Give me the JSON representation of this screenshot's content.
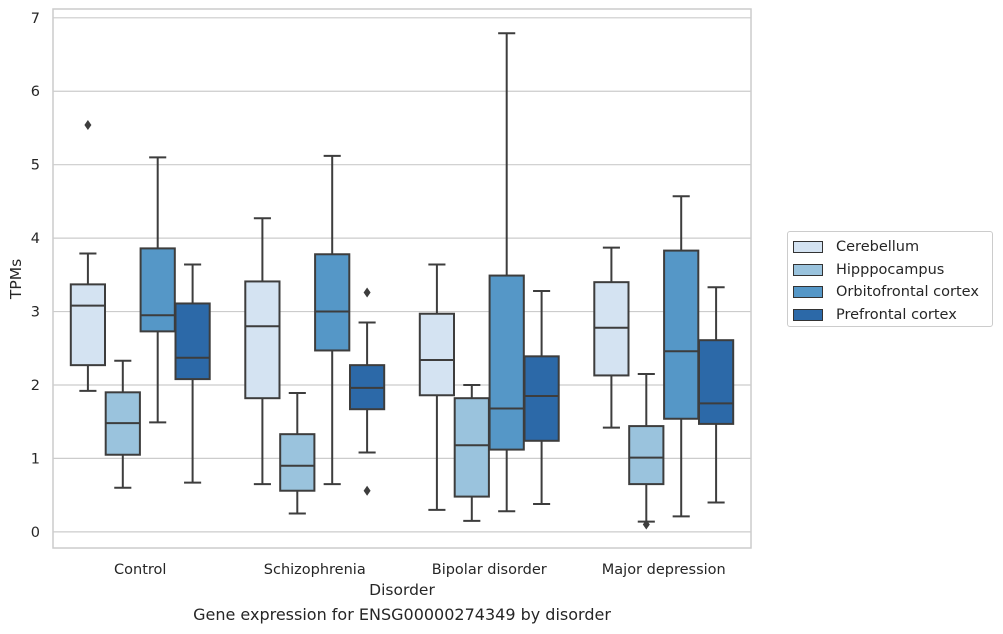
{
  "caption": "Gene expression for ENSG00000274349 by disorder",
  "chart_data": {
    "type": "box",
    "xlabel": "Disorder",
    "ylabel": "TPMs",
    "ylim": [
      -0.22,
      7.12
    ],
    "yticks": [
      0,
      1,
      2,
      3,
      4,
      5,
      6,
      7
    ],
    "grid": "horizontal",
    "legend_position": "right",
    "categories": [
      "Control",
      "Schizophrenia",
      "Bipolar disorder",
      "Major depression"
    ],
    "series": [
      {
        "name": "Cerebellum",
        "color": "#d4e3f2",
        "boxes": [
          {
            "whisker_low": 1.92,
            "q1": 2.27,
            "median": 3.08,
            "q3": 3.37,
            "whisker_high": 3.79,
            "outliers": [
              5.54
            ]
          },
          {
            "whisker_low": 0.65,
            "q1": 1.82,
            "median": 2.8,
            "q3": 3.41,
            "whisker_high": 4.27,
            "outliers": []
          },
          {
            "whisker_low": 0.3,
            "q1": 1.86,
            "median": 2.34,
            "q3": 2.97,
            "whisker_high": 3.64,
            "outliers": []
          },
          {
            "whisker_low": 1.42,
            "q1": 2.13,
            "median": 2.78,
            "q3": 3.4,
            "whisker_high": 3.87,
            "outliers": []
          }
        ]
      },
      {
        "name": "Hipppocampus",
        "color": "#9ac3dd",
        "boxes": [
          {
            "whisker_low": 0.6,
            "q1": 1.05,
            "median": 1.48,
            "q3": 1.9,
            "whisker_high": 2.33,
            "outliers": []
          },
          {
            "whisker_low": 0.25,
            "q1": 0.56,
            "median": 0.9,
            "q3": 1.33,
            "whisker_high": 1.89,
            "outliers": []
          },
          {
            "whisker_low": 0.15,
            "q1": 0.48,
            "median": 1.18,
            "q3": 1.82,
            "whisker_high": 2.0,
            "outliers": []
          },
          {
            "whisker_low": 0.14,
            "q1": 0.65,
            "median": 1.01,
            "q3": 1.44,
            "whisker_high": 2.15,
            "outliers": [
              0.1
            ]
          }
        ]
      },
      {
        "name": "Orbitofrontal cortex",
        "color": "#5597c7",
        "boxes": [
          {
            "whisker_low": 1.49,
            "q1": 2.73,
            "median": 2.95,
            "q3": 3.86,
            "whisker_high": 5.1,
            "outliers": []
          },
          {
            "whisker_low": 0.65,
            "q1": 2.47,
            "median": 3.0,
            "q3": 3.78,
            "whisker_high": 5.12,
            "outliers": []
          },
          {
            "whisker_low": 0.28,
            "q1": 1.12,
            "median": 1.68,
            "q3": 3.49,
            "whisker_high": 6.79,
            "outliers": []
          },
          {
            "whisker_low": 0.21,
            "q1": 1.54,
            "median": 2.46,
            "q3": 3.83,
            "whisker_high": 4.57,
            "outliers": []
          }
        ]
      },
      {
        "name": "Prefrontal cortex",
        "color": "#2c69a8",
        "boxes": [
          {
            "whisker_low": 0.67,
            "q1": 2.08,
            "median": 2.37,
            "q3": 3.11,
            "whisker_high": 3.64,
            "outliers": []
          },
          {
            "whisker_low": 1.08,
            "q1": 1.67,
            "median": 1.96,
            "q3": 2.27,
            "whisker_high": 2.85,
            "outliers": [
              3.26,
              0.56
            ]
          },
          {
            "whisker_low": 0.38,
            "q1": 1.24,
            "median": 1.85,
            "q3": 2.39,
            "whisker_high": 3.28,
            "outliers": []
          },
          {
            "whisker_low": 0.4,
            "q1": 1.47,
            "median": 1.75,
            "q3": 2.61,
            "whisker_high": 3.33,
            "outliers": []
          }
        ]
      }
    ]
  }
}
